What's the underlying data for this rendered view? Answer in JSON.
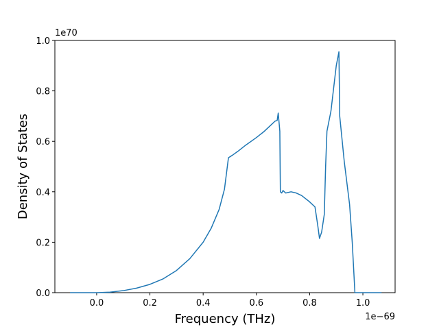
{
  "chart_data": {
    "type": "line",
    "xlabel": "Frequency (THz)",
    "ylabel": "Density of States",
    "x_offset": "1e−69",
    "y_offset": "1e70",
    "x": [
      -0.1,
      0.0,
      0.05,
      0.1,
      0.15,
      0.2,
      0.25,
      0.3,
      0.35,
      0.4,
      0.43,
      0.46,
      0.48,
      0.495,
      0.51,
      0.53,
      0.56,
      0.6,
      0.63,
      0.66,
      0.67,
      0.678,
      0.682,
      0.688,
      0.69,
      0.695,
      0.7,
      0.71,
      0.73,
      0.75,
      0.77,
      0.8,
      0.82,
      0.83,
      0.837,
      0.845,
      0.855,
      0.86,
      0.865,
      0.88,
      0.89,
      0.9,
      0.91,
      0.913,
      0.93,
      0.95,
      0.96,
      0.97,
      1.07
    ],
    "series": [
      {
        "name": "DOS",
        "color": "#1f77b4",
        "values": [
          0,
          0,
          0.002,
          0.008,
          0.018,
          0.033,
          0.055,
          0.088,
          0.135,
          0.2,
          0.255,
          0.33,
          0.41,
          0.535,
          0.545,
          0.56,
          0.585,
          0.615,
          0.64,
          0.67,
          0.68,
          0.683,
          0.712,
          0.64,
          0.4,
          0.395,
          0.405,
          0.395,
          0.4,
          0.395,
          0.385,
          0.36,
          0.34,
          0.27,
          0.215,
          0.24,
          0.31,
          0.5,
          0.64,
          0.72,
          0.81,
          0.9,
          0.955,
          0.7,
          0.52,
          0.35,
          0.2,
          0,
          0
        ]
      }
    ],
    "xlim": [
      -0.157,
      1.121
    ],
    "ylim": [
      0,
      1.0
    ],
    "xticks": [
      {
        "value": 0,
        "label": "0.0"
      },
      0.2,
      0.4,
      0.6,
      0.8,
      {
        "value": 1,
        "label": "1.0"
      }
    ],
    "yticks": [
      {
        "value": 0,
        "label": "0.0"
      },
      0.2,
      0.4,
      0.6,
      0.8,
      {
        "value": 1,
        "label": "1.0"
      }
    ],
    "grid": false
  }
}
